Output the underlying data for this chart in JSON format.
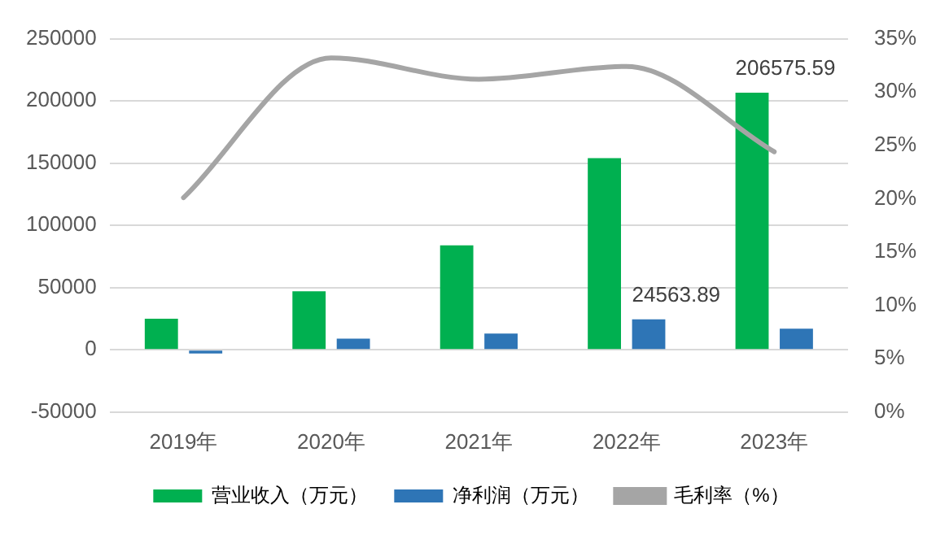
{
  "chart_data": {
    "type": "bar",
    "categories": [
      "2019年",
      "2020年",
      "2021年",
      "2022年",
      "2023年"
    ],
    "series": [
      {
        "name": "营业收入（万元）",
        "color": "#00b050",
        "values": [
          25000,
          47000,
          84000,
          154000,
          206575.59
        ],
        "value_labels": [
          null,
          null,
          null,
          null,
          "206575.59"
        ]
      },
      {
        "name": "净利润（万元）",
        "color": "#2e75b6",
        "values": [
          -3000,
          9000,
          13000,
          24563.89,
          17000
        ],
        "value_labels": [
          null,
          null,
          null,
          "24563.89",
          null
        ]
      },
      {
        "name": "毛利率（%）",
        "type": "line",
        "axis": "y2",
        "color": "#a5a5a5",
        "values": [
          20.1,
          33.2,
          31.2,
          32.4,
          24.4
        ]
      }
    ],
    "ylim": [
      -50000,
      250000
    ],
    "yticks": [
      -50000,
      0,
      50000,
      100000,
      150000,
      200000,
      250000
    ],
    "y2lim": [
      0,
      35
    ],
    "y2ticks": [
      {
        "value": 0,
        "label": "0%"
      },
      {
        "value": 5,
        "label": "5%"
      },
      {
        "value": 10,
        "label": "10%"
      },
      {
        "value": 15,
        "label": "15%"
      },
      {
        "value": 20,
        "label": "20%"
      },
      {
        "value": 25,
        "label": "25%"
      },
      {
        "value": 30,
        "label": "30%"
      },
      {
        "value": 35,
        "label": "35%"
      }
    ],
    "grid": "y",
    "legend": "bottom",
    "marker": "none"
  }
}
